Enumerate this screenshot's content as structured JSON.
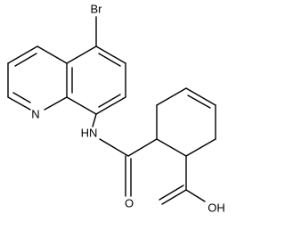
{
  "atoms": {
    "bromine": "Br",
    "ring_nitrogen": "N",
    "amide_nitrogen": "HN",
    "carbonyl_oxygen": "O",
    "hydroxyl": "OH"
  }
}
